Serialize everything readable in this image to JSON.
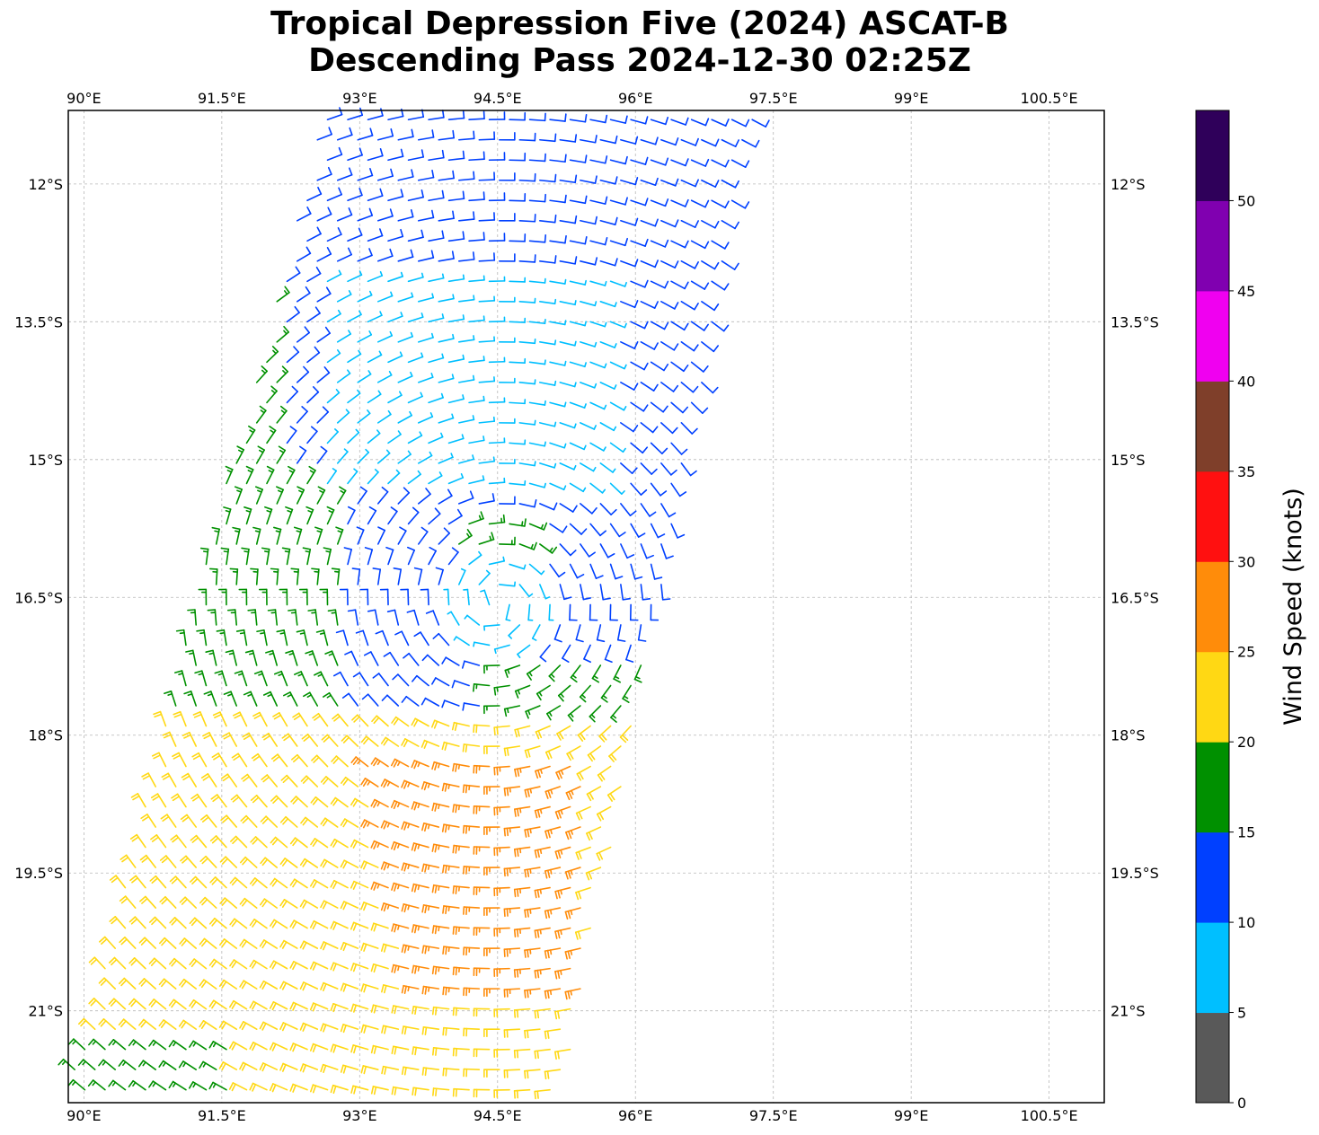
{
  "chart_data": {
    "type": "wind-barb-map",
    "title": {
      "line1": "Tropical Depression Five (2024) ASCAT-B",
      "line2": "Descending Pass 2024-12-30 02:25Z"
    },
    "x_axis": {
      "label": "",
      "range": [
        89.83,
        101.1
      ],
      "ticks": [
        90,
        91.5,
        93,
        94.5,
        96,
        97.5,
        99,
        100.5
      ],
      "tick_labels": [
        "90°E",
        "91.5°E",
        "93°E",
        "94.5°E",
        "96°E",
        "97.5°E",
        "99°E",
        "100.5°E"
      ]
    },
    "y_axis": {
      "label": "",
      "range": [
        -22.0,
        -11.2
      ],
      "ticks": [
        -12,
        -13.5,
        -15,
        -16.5,
        -18,
        -19.5,
        -21
      ],
      "tick_labels": [
        "12°S",
        "13.5°S",
        "15°S",
        "16.5°S",
        "18°S",
        "19.5°S",
        "21°S"
      ]
    },
    "grid": true,
    "colorbar": {
      "label": "Wind Speed (knots)",
      "bounds": [
        0,
        5,
        10,
        15,
        20,
        25,
        30,
        35,
        40,
        45,
        50,
        55
      ],
      "tick_labels": [
        "0",
        "5",
        "10",
        "15",
        "20",
        "25",
        "30",
        "35",
        "40",
        "45",
        "50"
      ],
      "colors": [
        "#595959",
        "#00bfff",
        "#0040ff",
        "#009000",
        "#ffd814",
        "#ff8c0a",
        "#ff1010",
        "#7f3f2a",
        "#f000f0",
        "#8000b0",
        "#2f005a"
      ]
    },
    "swath": {
      "polygon_lonlat": [
        [
          92.6,
          -11.2
        ],
        [
          97.3,
          -11.2
        ],
        [
          95.2,
          -22.0
        ],
        [
          89.8,
          -22.0
        ]
      ],
      "center": {
        "lon": 94.5,
        "lat": -16.55
      },
      "description_zones": [
        {
          "region": "north/central swath",
          "speed_kt_range": [
            5,
            15
          ]
        },
        {
          "region": "west edge north of 17.7S",
          "speed_kt_range": [
            15,
            20
          ]
        },
        {
          "region": "southwest/south",
          "speed_kt_range": [
            20,
            25
          ]
        },
        {
          "region": "south-central",
          "speed_kt_range": [
            25,
            30
          ]
        },
        {
          "region": "far southwest corner",
          "speed_kt_range": [
            15,
            20
          ]
        }
      ]
    }
  }
}
